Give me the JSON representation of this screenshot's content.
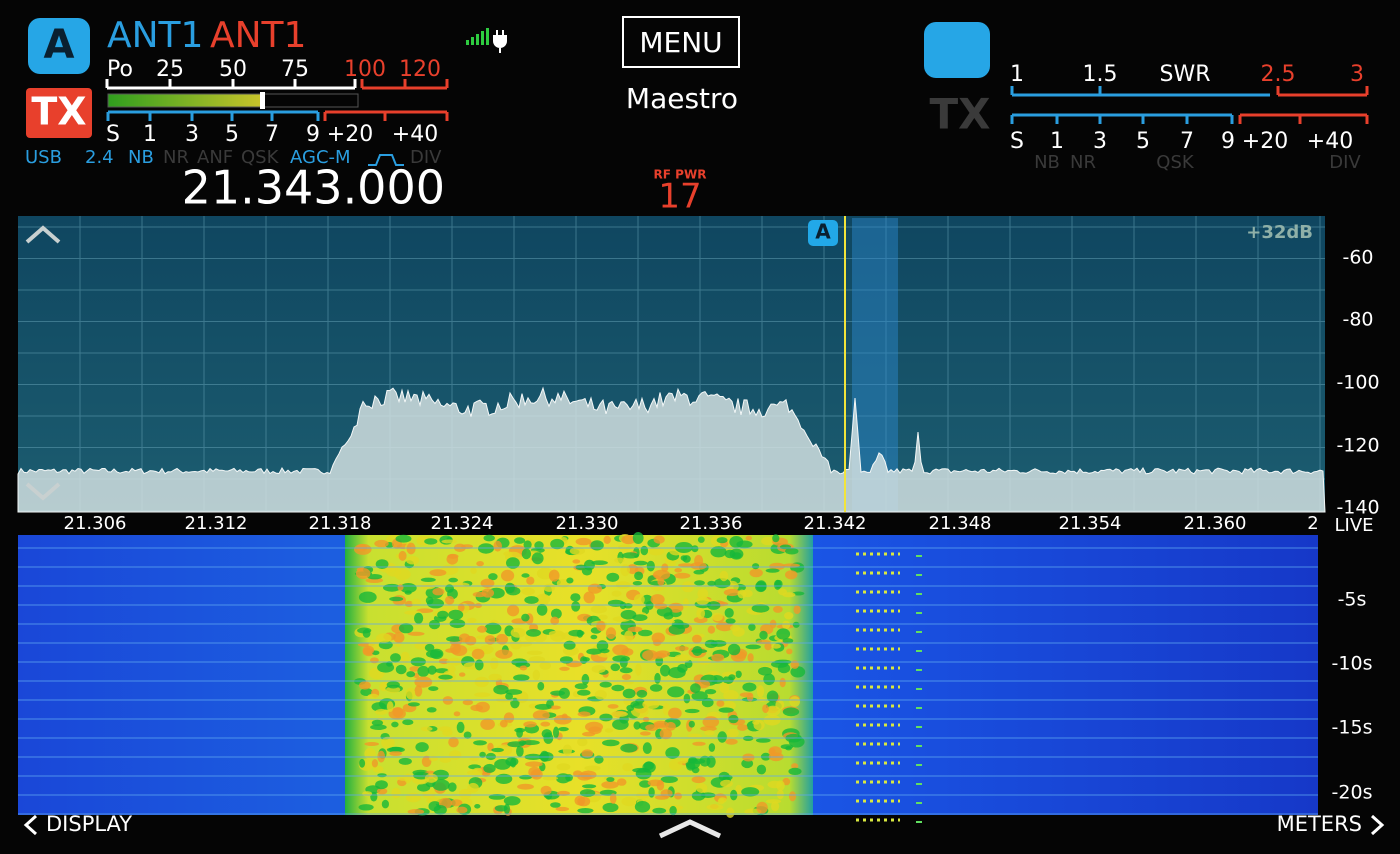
{
  "left_panel": {
    "slice_badge": "A",
    "antenna_rx": "ANT1",
    "antenna_tx": "ANT1",
    "tx_button": "TX",
    "power_scale": [
      "Po",
      "25",
      "50",
      "75",
      "100",
      "120"
    ],
    "s_meter_scale": [
      "S",
      "1",
      "3",
      "5",
      "7",
      "9",
      "+20",
      "+40"
    ],
    "status": [
      "USB",
      "2.4",
      "NB",
      "NR",
      "ANF",
      "QSK",
      "AGC-M",
      "DIV"
    ],
    "frequency": "21.343.000"
  },
  "center": {
    "menu": "MENU",
    "station": "Maestro",
    "rf_power_label": "RF PWR",
    "rf_power_value": "17"
  },
  "right_panel": {
    "tx_button": "TX",
    "swr_scale": [
      "1",
      "1.5",
      "SWR",
      "2.5",
      "3"
    ],
    "s_meter_scale": [
      "S",
      "1",
      "3",
      "5",
      "7",
      "9",
      "+20",
      "+40"
    ],
    "status": [
      "NB",
      "NR",
      "QSK",
      "DIV"
    ]
  },
  "panadapter": {
    "slice_marker": "A",
    "gain": "+32dB",
    "db_scale": [
      "-60",
      "-80",
      "-100",
      "-120",
      "-140"
    ],
    "frequency_scale": [
      "21.306",
      "21.312",
      "21.318",
      "21.324",
      "21.330",
      "21.336",
      "21.342",
      "21.348",
      "21.354",
      "21.360",
      "2"
    ],
    "mode": "LIVE"
  },
  "waterfall": {
    "time_scale": [
      "-5s",
      "-10s",
      "-15s",
      "-20s"
    ]
  },
  "footer": {
    "left": "DISPLAY",
    "right": "METERS"
  }
}
